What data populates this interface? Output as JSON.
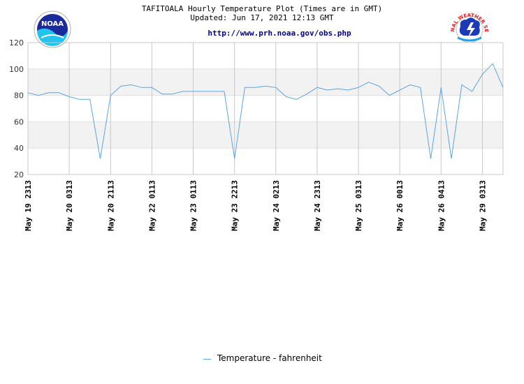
{
  "header": {
    "title_line1": "TAFITOALA Hourly Temperature Plot (Times are in GMT)",
    "title_line2": "Updated: Jun 17, 2021 12:13 GMT",
    "url": "http://www.prh.noaa.gov/obs.php"
  },
  "logos": {
    "left": "noaa-logo",
    "left_text": "NOAA",
    "right": "nws-logo",
    "right_text": "NATIONAL WEATHER SERVICE"
  },
  "colors": {
    "line": "#5aa5e0",
    "band": "#f2f2f2",
    "grid": "#c8c8c8",
    "url": "#00008b"
  },
  "legend": {
    "label": "Temperature - fahrenheit"
  },
  "chart_data": {
    "type": "line",
    "title": "TAFITOALA Hourly Temperature Plot (Times are in GMT)",
    "ylim": [
      20,
      120
    ],
    "yticks": [
      20,
      40,
      60,
      80,
      100,
      120
    ],
    "xticks": [
      "May 19 2313",
      "May 20 0313",
      "May 20 2113",
      "May 22 0113",
      "May 23 0113",
      "May 23 2213",
      "May 24 0213",
      "May 24 2313",
      "May 25 0313",
      "May 26 0013",
      "May 26 0413",
      "May 29 0313"
    ],
    "xtick_index": [
      0,
      4,
      8,
      12,
      16,
      20,
      24,
      28,
      32,
      36,
      40,
      44
    ],
    "grid": true,
    "legend_position": "bottom-center",
    "series": [
      {
        "name": "Temperature - fahrenheit",
        "values": [
          82,
          80,
          82,
          82,
          79,
          77,
          77,
          32,
          80,
          87,
          88,
          86,
          86,
          81,
          81,
          83,
          83,
          83,
          83,
          83,
          32,
          86,
          86,
          87,
          86,
          79,
          77,
          81,
          86,
          84,
          85,
          84,
          86,
          90,
          87,
          80,
          84,
          88,
          86,
          32,
          86,
          32,
          88,
          83,
          96,
          104,
          86
        ]
      }
    ]
  }
}
